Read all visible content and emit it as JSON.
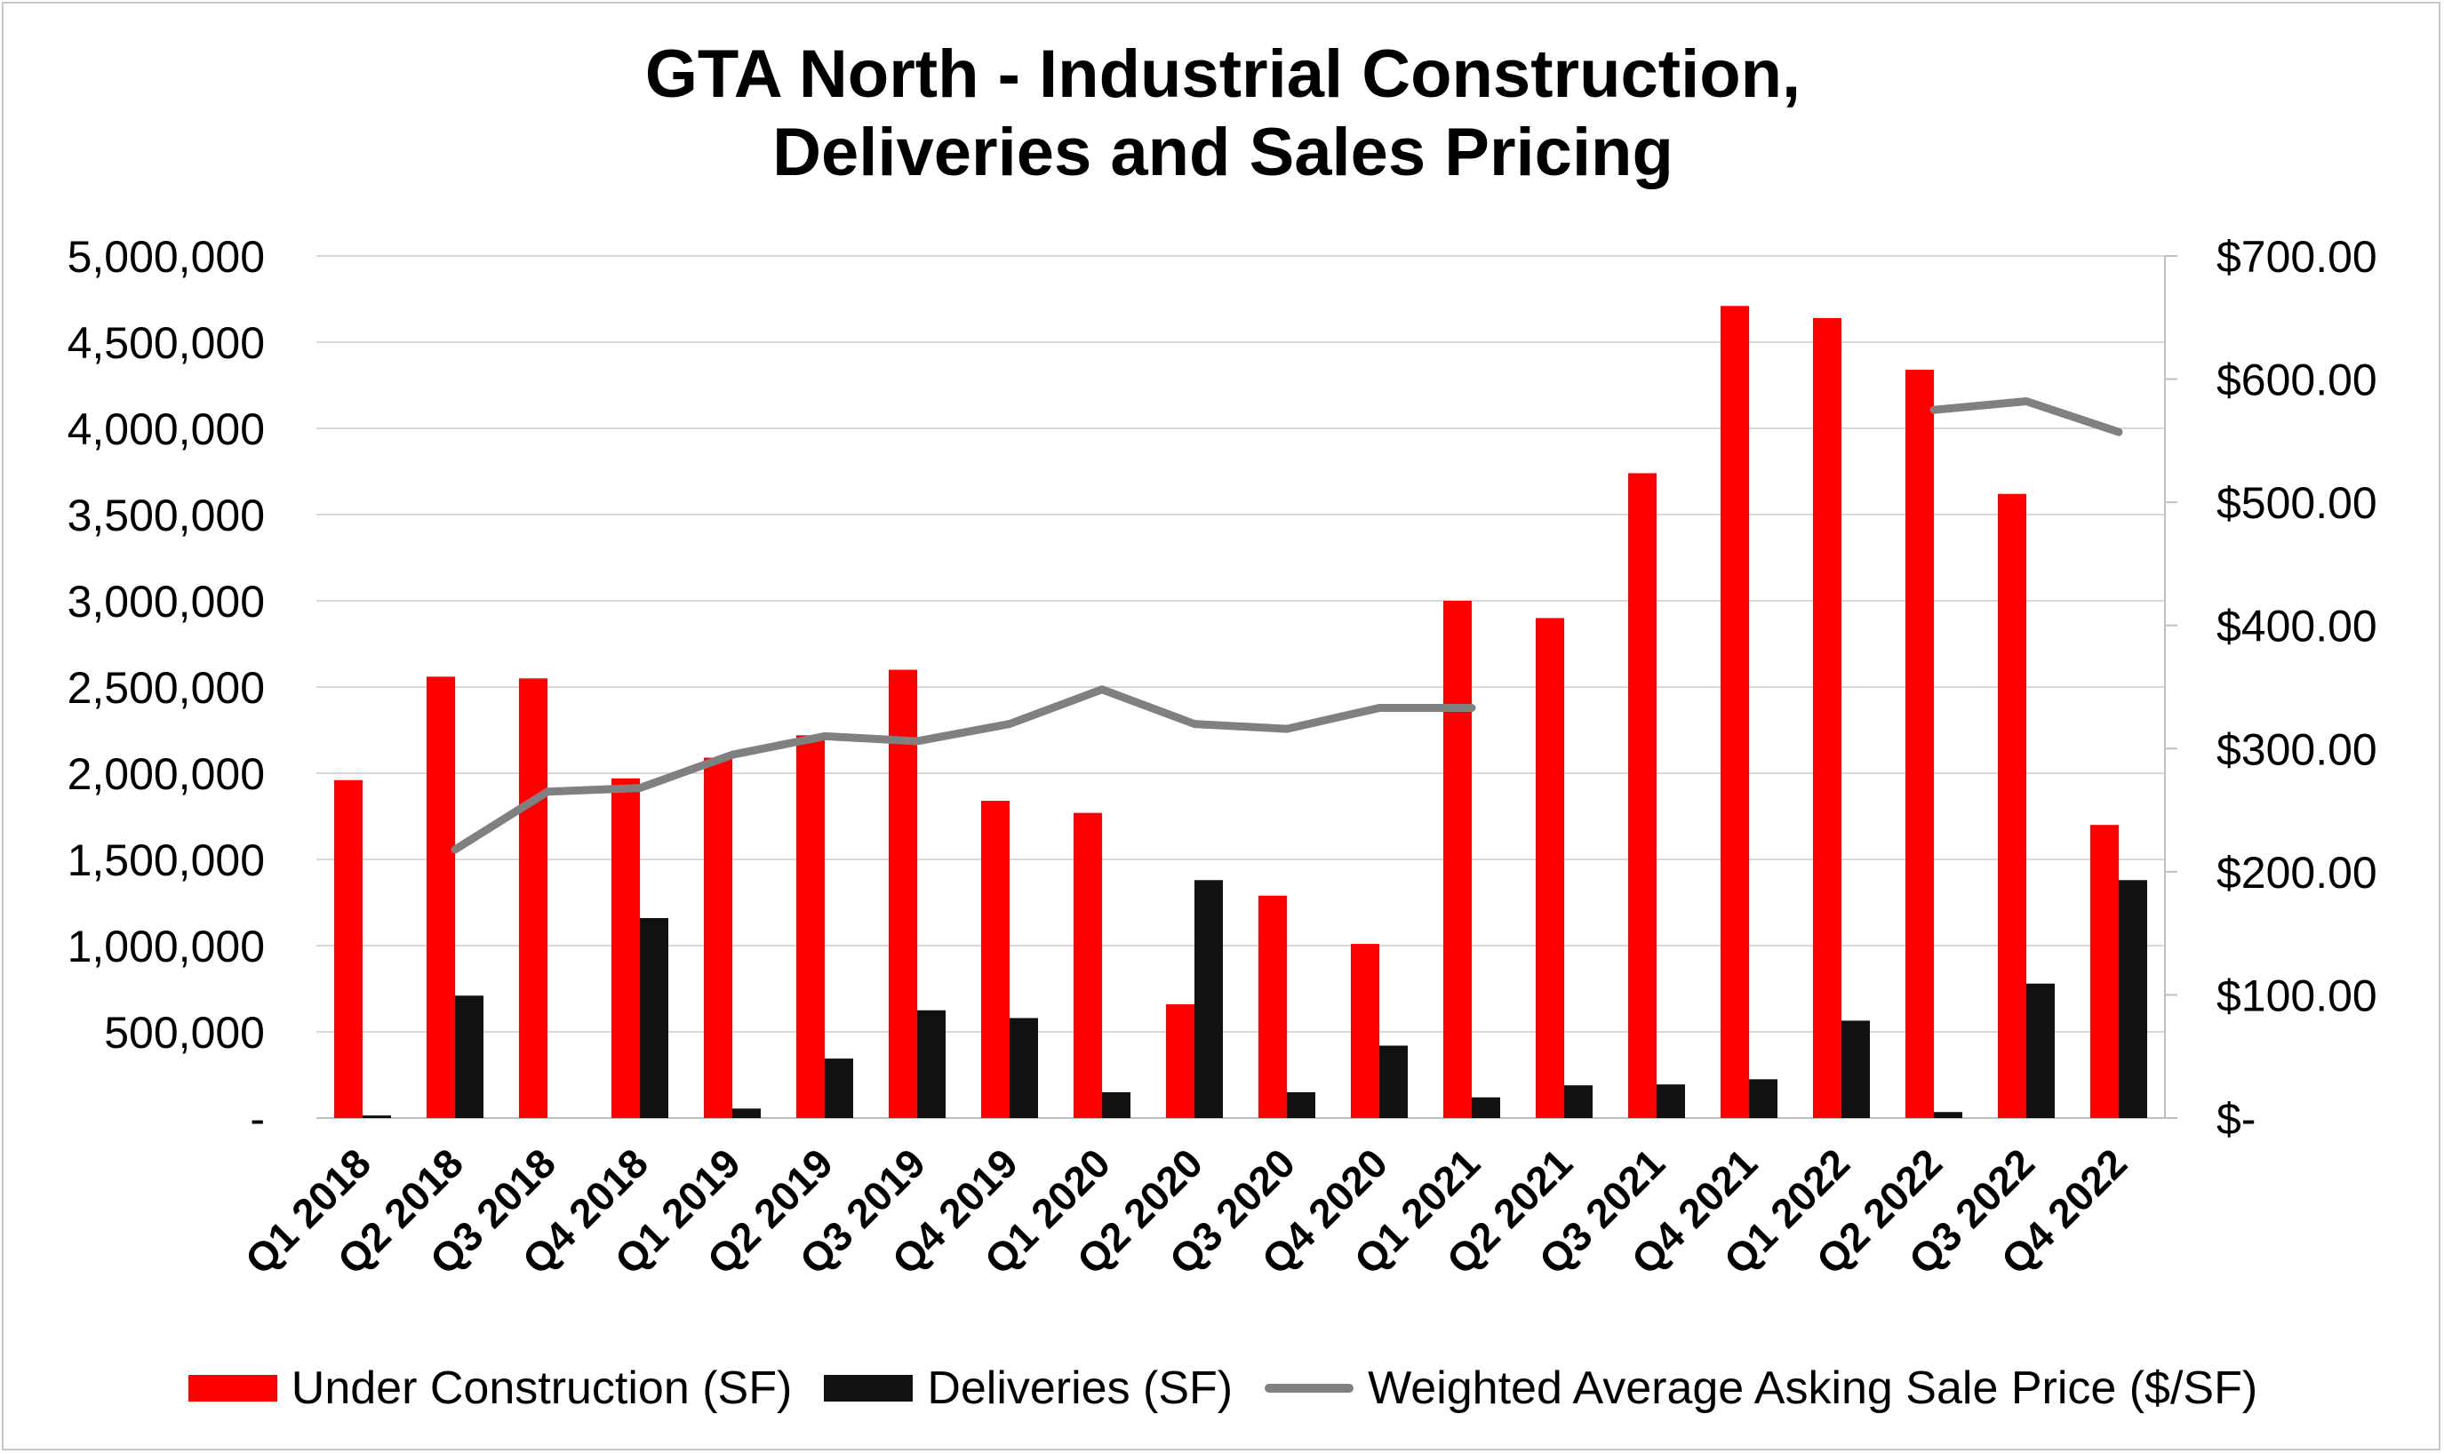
{
  "chart_data": {
    "type": "bar",
    "title_lines": [
      "GTA North - Industrial Construction,",
      "Deliveries and Sales Pricing"
    ],
    "categories": [
      "Q1 2018",
      "Q2 2018",
      "Q3 2018",
      "Q4 2018",
      "Q1 2019",
      "Q2 2019",
      "Q3 2019",
      "Q4 2019",
      "Q1 2020",
      "Q2 2020",
      "Q3 2020",
      "Q4 2020",
      "Q1 2021",
      "Q2 2021",
      "Q3 2021",
      "Q4 2021",
      "Q1 2022",
      "Q2 2022",
      "Q3 2022",
      "Q4 2022"
    ],
    "series": [
      {
        "name": "Under Construction (SF)",
        "type": "bar",
        "axis": "left",
        "color": "#ff0000",
        "values": [
          1960000,
          2560000,
          2550000,
          1970000,
          2090000,
          2220000,
          2600000,
          1840000,
          1770000,
          660000,
          1290000,
          1010000,
          3000000,
          2900000,
          3740000,
          4710000,
          4640000,
          4340000,
          3620000,
          1700000
        ]
      },
      {
        "name": "Deliveries (SF)",
        "type": "bar",
        "axis": "left",
        "color": "#111111",
        "values": [
          15000,
          710000,
          0,
          1160000,
          55000,
          345000,
          625000,
          580000,
          150000,
          1380000,
          150000,
          420000,
          120000,
          190000,
          195000,
          225000,
          565000,
          35000,
          780000,
          1380000
        ]
      },
      {
        "name": "Weighted Average Asking Sale Price ($/SF)",
        "type": "line",
        "axis": "right",
        "color": "#808080",
        "values": [
          null,
          218,
          265,
          268,
          295,
          310,
          306,
          320,
          348,
          320,
          316,
          333,
          333,
          null,
          null,
          null,
          null,
          575,
          582,
          557
        ]
      }
    ],
    "left_axis": {
      "ylim": [
        0,
        5000000
      ],
      "ticks": [
        0,
        500000,
        1000000,
        1500000,
        2000000,
        2500000,
        3000000,
        3500000,
        4000000,
        4500000,
        5000000
      ],
      "tick_labels": [
        "-",
        "500,000",
        "1,000,000",
        "1,500,000",
        "2,000,000",
        "2,500,000",
        "3,000,000",
        "3,500,000",
        "4,000,000",
        "4,500,000",
        "5,000,000"
      ]
    },
    "right_axis": {
      "ylim": [
        0,
        700
      ],
      "ticks": [
        0,
        100,
        200,
        300,
        400,
        500,
        600,
        700
      ],
      "tick_labels": [
        "$-",
        "$100.00",
        "$200.00",
        "$300.00",
        "$400.00",
        "$500.00",
        "$600.00",
        "$700.00"
      ]
    },
    "grid": true,
    "legend_position": "bottom"
  }
}
